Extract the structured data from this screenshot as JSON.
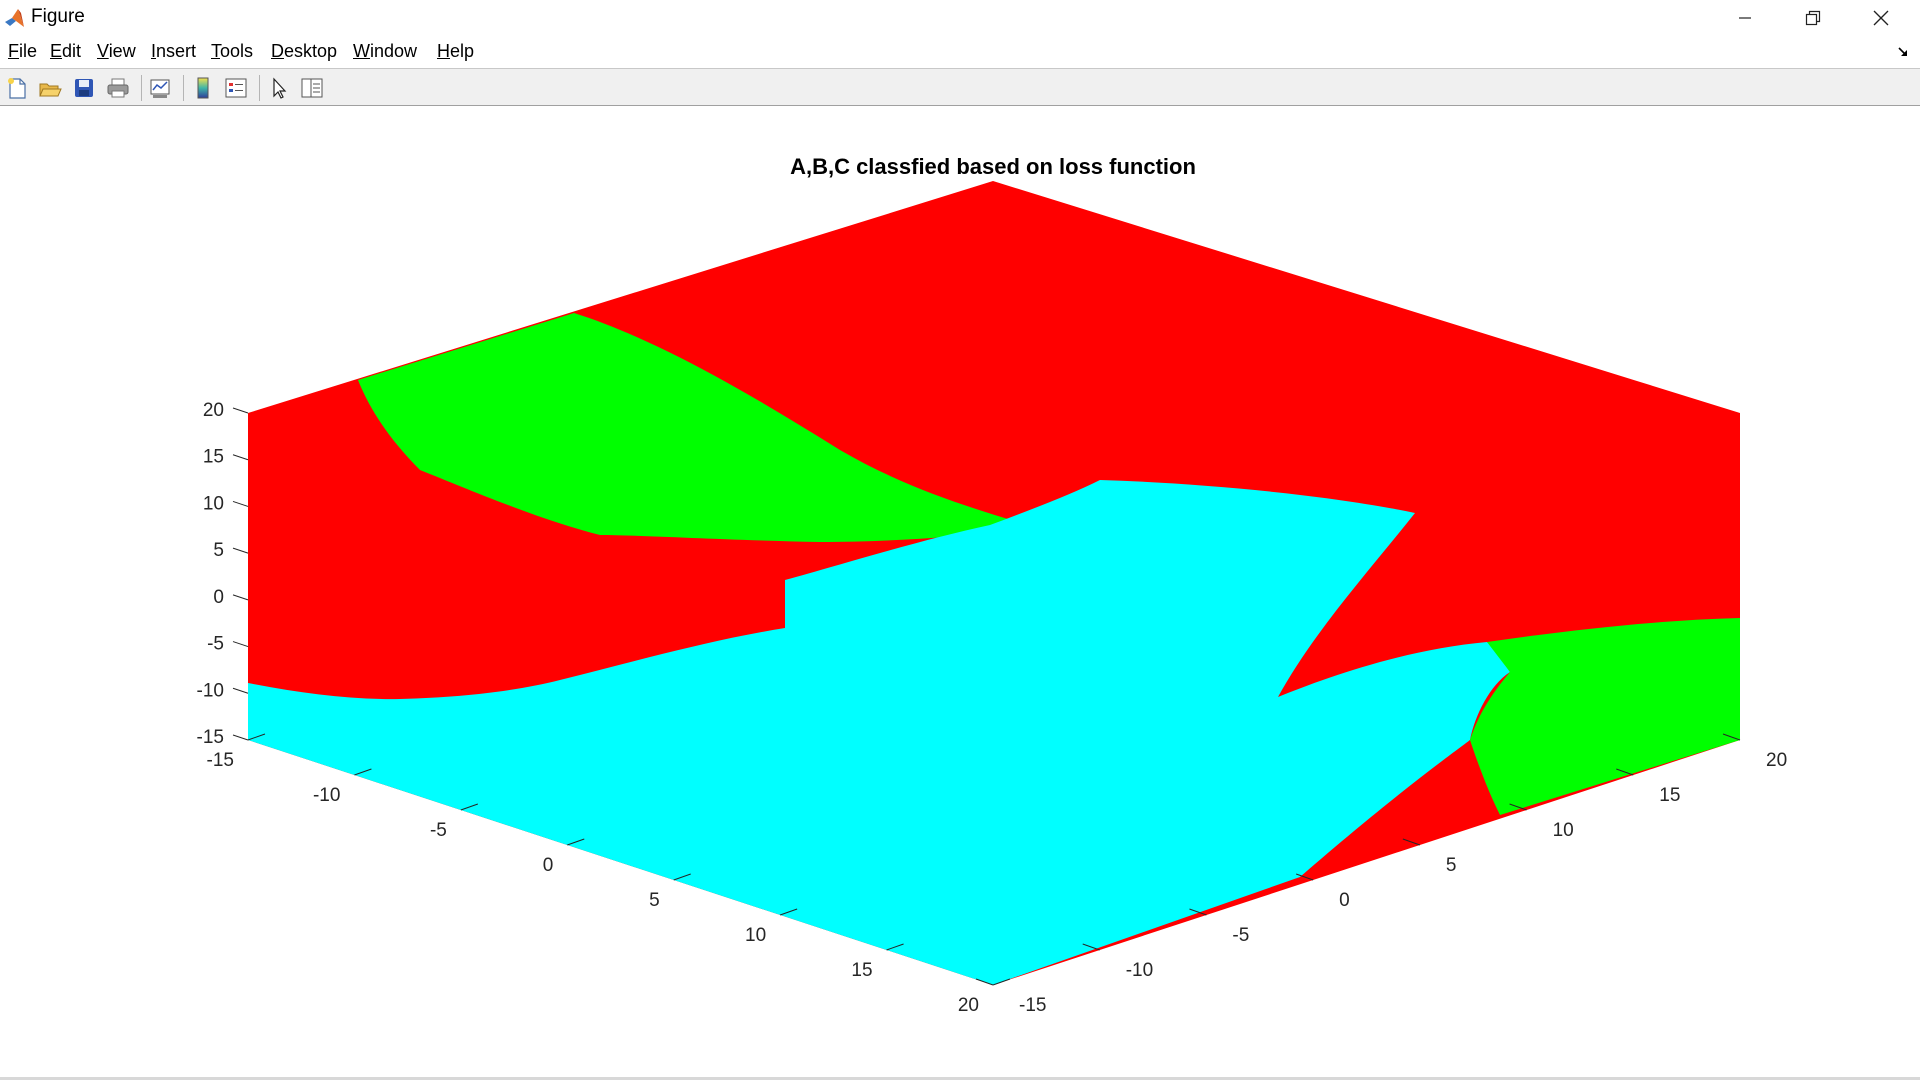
{
  "window": {
    "title": "Figure",
    "minimize_icon": "minimize-icon",
    "maximize_icon": "restore-icon",
    "close_icon": "close-icon"
  },
  "menu": {
    "items": [
      "File",
      "Edit",
      "View",
      "Insert",
      "Tools",
      "Desktop",
      "Window",
      "Help"
    ]
  },
  "toolbar": {
    "icons": [
      "new-figure-icon",
      "open-file-icon",
      "save-icon",
      "print-icon",
      "link-plot-icon",
      "insert-colorbar-icon",
      "insert-legend-icon",
      "edit-plot-icon",
      "property-inspector-icon"
    ]
  },
  "chart_data": {
    "type": "surface",
    "title": "A,B,C classfied based on loss function",
    "view": "3-D view with a colored flat surface patch per class region",
    "xaxis_ticks": [
      "-15",
      "-10",
      "-5",
      "0",
      "5",
      "10",
      "15",
      "20"
    ],
    "yaxis_ticks": [
      "-15",
      "-10",
      "-5",
      "0",
      "5",
      "10",
      "15",
      "20"
    ],
    "zaxis_ticks": [
      "-15",
      "-10",
      "-5",
      "0",
      "5",
      "10",
      "15",
      "20"
    ],
    "xlim": [
      -15,
      20
    ],
    "ylim": [
      -15,
      20
    ],
    "zlim": [
      -15,
      20
    ],
    "class_colors": {
      "red": "#ff0000",
      "green": "#00ff00",
      "cyan": "#00ffff"
    }
  }
}
